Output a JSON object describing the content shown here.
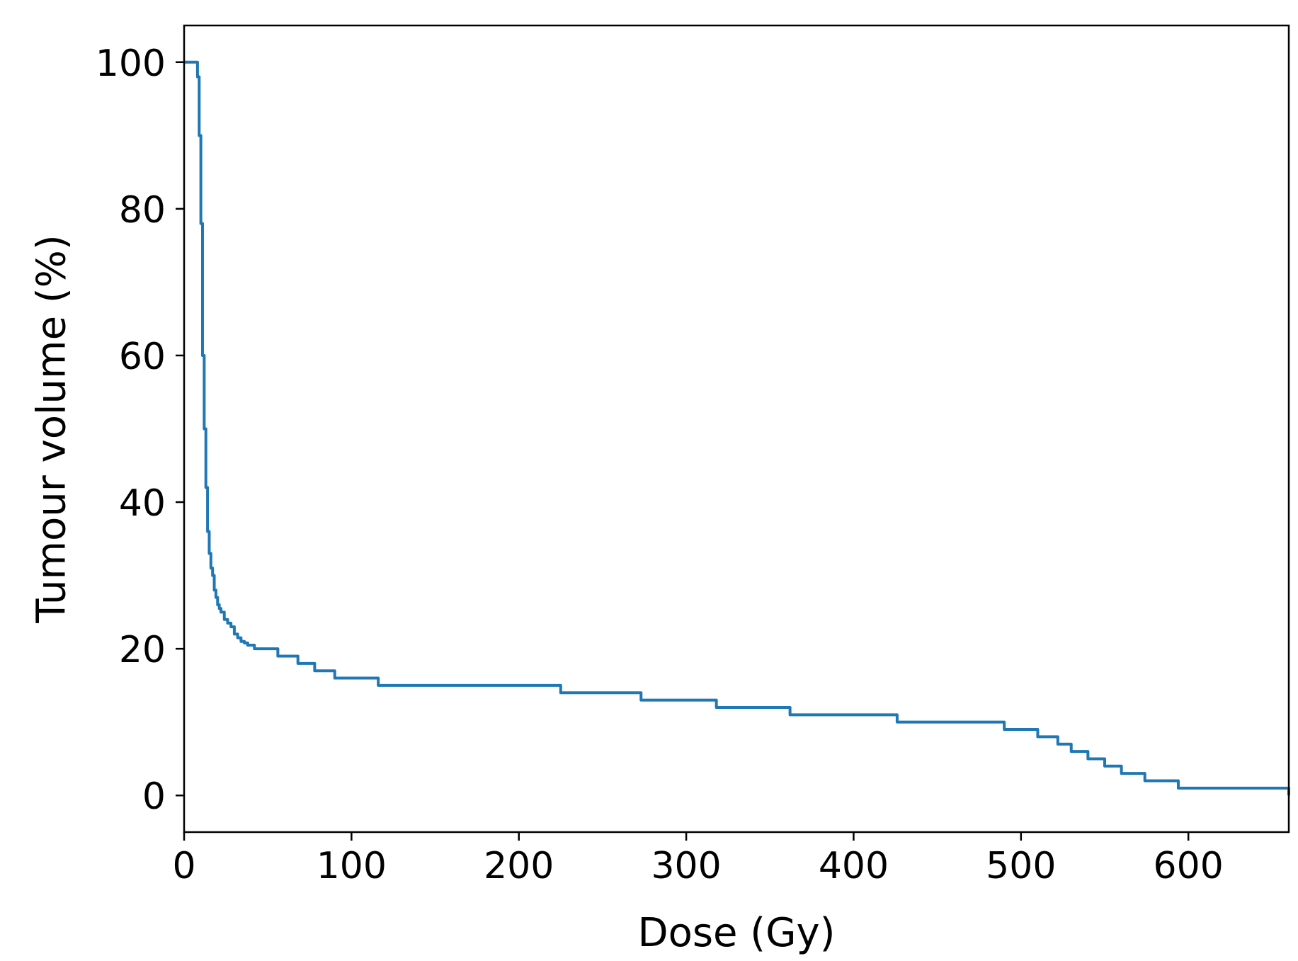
{
  "chart_data": {
    "type": "line",
    "title": "",
    "xlabel": "Dose (Gy)",
    "ylabel": "Tumour volume (%)",
    "xlim": [
      0,
      660
    ],
    "ylim": [
      -5,
      105
    ],
    "xticks": [
      0,
      100,
      200,
      300,
      400,
      500,
      600
    ],
    "yticks": [
      0,
      20,
      40,
      60,
      80,
      100
    ],
    "grid": false,
    "legend": "none",
    "color": "#1f77b4",
    "series": [
      {
        "x": [
          0,
          7,
          8,
          9,
          10,
          11,
          12,
          13,
          14,
          15,
          16,
          17,
          18,
          19,
          20,
          21,
          22,
          24,
          26,
          28,
          30,
          32,
          34,
          36,
          38,
          42,
          56,
          68,
          78,
          90,
          116,
          225,
          273,
          318,
          362,
          426,
          490,
          510,
          522,
          530,
          540,
          550,
          560,
          574,
          594,
          659,
          660
        ],
        "y": [
          100,
          100,
          98,
          90,
          78,
          60,
          50,
          42,
          36,
          33,
          31,
          30,
          28,
          27,
          26,
          25.5,
          25,
          24,
          23.5,
          23,
          22,
          21.5,
          21,
          20.8,
          20.5,
          20,
          19,
          18,
          17,
          16,
          15,
          14,
          13,
          12,
          11,
          10,
          9,
          8,
          7,
          6,
          5,
          4,
          3,
          2,
          1,
          1,
          0
        ]
      }
    ]
  }
}
